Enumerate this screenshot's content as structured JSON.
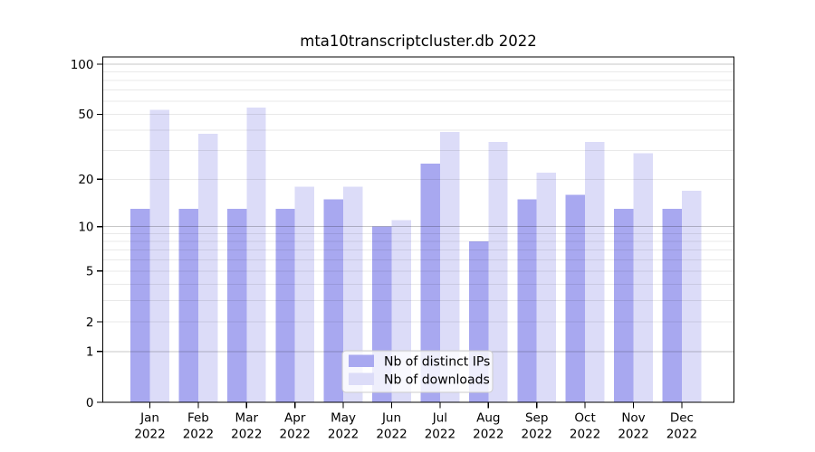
{
  "title": "mta10transcriptcluster.db 2022",
  "chart_data": {
    "type": "bar",
    "title": "mta10transcriptcluster.db 2022",
    "categories": [
      "Jan 2022",
      "Feb 2022",
      "Mar 2022",
      "Apr 2022",
      "May 2022",
      "Jun 2022",
      "Jul 2022",
      "Aug 2022",
      "Sep 2022",
      "Oct 2022",
      "Nov 2022",
      "Dec 2022"
    ],
    "series": [
      {
        "name": "Nb of distinct IPs",
        "color": "#a8a8f0",
        "values": [
          13,
          13,
          13,
          13,
          15,
          10,
          25,
          8,
          15,
          16,
          13,
          13
        ]
      },
      {
        "name": "Nb of downloads",
        "color": "#dcdcf8",
        "values": [
          53,
          38,
          55,
          18,
          18,
          11,
          39,
          34,
          22,
          34,
          29,
          17
        ]
      }
    ],
    "xlabel": "",
    "ylabel": "",
    "yscale": "log10(1+v)",
    "ylim": [
      0,
      110
    ],
    "yticks": [
      0,
      1,
      2,
      5,
      10,
      20,
      50,
      100
    ],
    "grid": {
      "on": true,
      "major_values": [
        1,
        10,
        100
      ],
      "minor_values": [
        2,
        3,
        4,
        5,
        6,
        7,
        8,
        9,
        20,
        30,
        40,
        50,
        60,
        70,
        80,
        90
      ],
      "major_color": "rgba(0,0,0,0.22)",
      "minor_color": "rgba(0,0,0,0.085)"
    },
    "legend": {
      "position": "lower center",
      "background": "rgba(255,255,255,0.8)",
      "border_color": "#cccccc"
    },
    "axis_color": "#000000",
    "background_color": "#ffffff"
  }
}
